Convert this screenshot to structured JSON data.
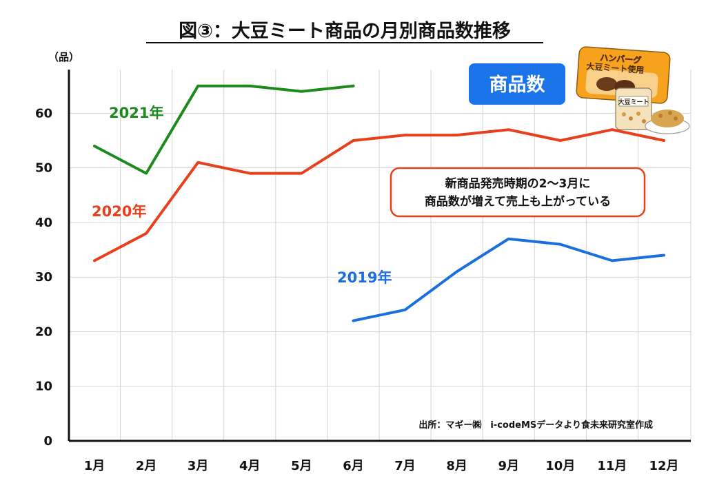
{
  "chart_data": {
    "type": "line",
    "title": "図③：大豆ミート商品の月別商品数推移",
    "ylabel": "（品）",
    "xlabel": "",
    "categories": [
      "1月",
      "2月",
      "3月",
      "4月",
      "5月",
      "6月",
      "7月",
      "8月",
      "9月",
      "10月",
      "11月",
      "12月"
    ],
    "ylim": [
      0,
      68
    ],
    "yticks": [
      0,
      10,
      20,
      30,
      40,
      50,
      60
    ],
    "grid": true,
    "series": [
      {
        "name": "2021年",
        "color": "#1e8a1e",
        "values": [
          54,
          49,
          65,
          65,
          64,
          65,
          null,
          null,
          null,
          null,
          null,
          null
        ]
      },
      {
        "name": "2020年",
        "color": "#e8401c",
        "values": [
          33,
          38,
          51,
          49,
          49,
          55,
          56,
          56,
          57,
          55,
          57,
          55
        ]
      },
      {
        "name": "2019年",
        "color": "#1a6fe0",
        "values": [
          null,
          null,
          null,
          null,
          null,
          22,
          24,
          31,
          37,
          36,
          33,
          34
        ]
      }
    ],
    "annotation": [
      "新商品発売時期の2～3月に",
      "商品数が増えて売上も上がっている"
    ],
    "source": "出所：マギー㈱　i-codeMSデータより食未来研究室作成"
  },
  "badge": {
    "label": "商品数"
  },
  "illustration": {
    "package_top": "ハンバーグ",
    "package_sub": "大豆ミート使用",
    "bag_label": "大豆ミート"
  },
  "colors": {
    "badge": "#1a73e8",
    "callout_border": "#e8401c"
  }
}
